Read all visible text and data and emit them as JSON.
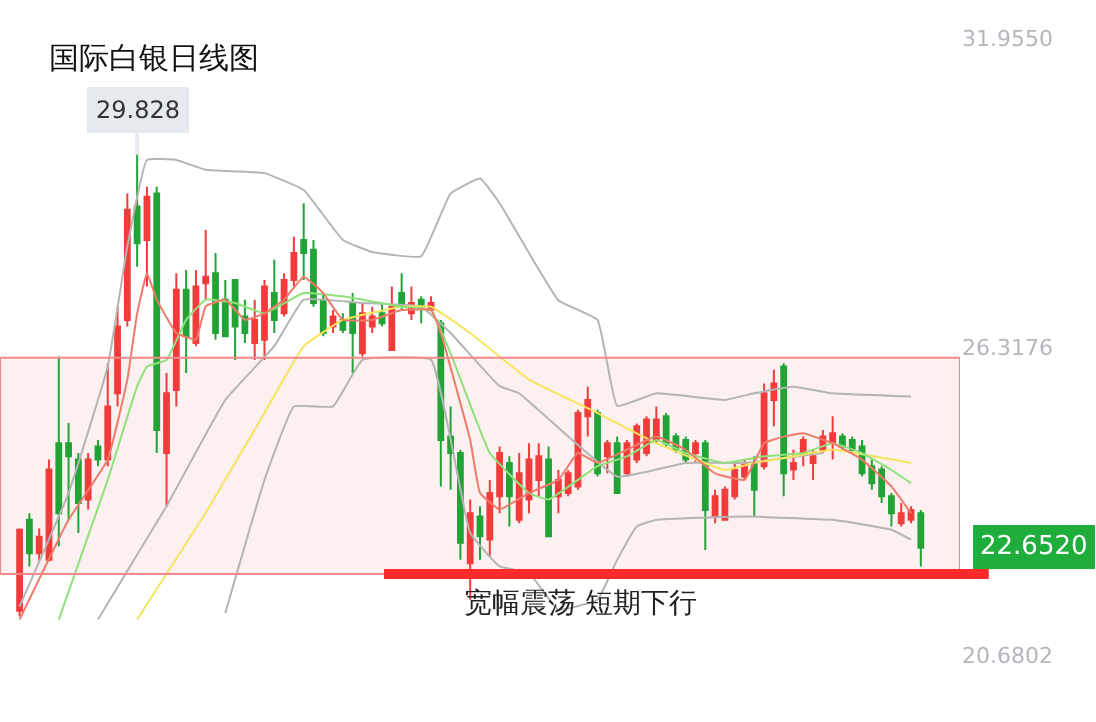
{
  "chart_data": {
    "type": "candlestick",
    "title": "国际白银日线图",
    "categories": [
      null,
      null,
      null,
      null,
      null,
      null,
      null,
      null,
      null,
      null,
      null,
      null,
      null,
      null,
      null,
      null,
      null,
      null,
      null,
      null,
      null,
      null,
      null,
      null,
      null,
      null,
      null,
      null,
      null,
      null,
      null,
      null,
      null,
      null,
      null,
      null,
      null,
      null,
      null,
      null,
      null,
      null,
      null,
      null,
      null,
      null,
      null,
      null,
      null,
      null,
      null,
      null,
      null,
      null,
      null,
      null,
      null,
      null,
      null,
      null,
      null,
      null,
      null,
      null,
      null,
      null,
      null,
      null,
      null,
      null,
      null,
      null,
      null,
      null,
      null,
      null,
      null,
      null,
      null,
      null,
      null,
      null,
      null,
      null,
      null,
      null,
      null,
      null,
      null,
      null,
      null,
      null,
      null
    ],
    "ohlc": [
      [
        21.5,
        23.0,
        21.4,
        22.98
      ],
      [
        23.16,
        23.28,
        22.31,
        22.55
      ],
      [
        22.55,
        23.0,
        22.4,
        22.85
      ],
      [
        22.43,
        24.26,
        22.4,
        24.08
      ],
      [
        24.56,
        26.14,
        22.68,
        23.28
      ],
      [
        24.56,
        24.93,
        23.16,
        24.32
      ],
      [
        24.26,
        24.38,
        22.92,
        23.47
      ],
      [
        23.53,
        24.38,
        23.35,
        24.26
      ],
      [
        24.5,
        24.62,
        24.14,
        24.26
      ],
      [
        24.26,
        26.02,
        24.14,
        25.23
      ],
      [
        25.47,
        27.05,
        25.23,
        26.69
      ],
      [
        26.81,
        29.12,
        26.69,
        28.82
      ],
      [
        28.88,
        29.828,
        27.78,
        28.21
      ],
      [
        28.27,
        29.24,
        27.42,
        29.06
      ],
      [
        29.12,
        29.24,
        24.38,
        24.8
      ],
      [
        24.38,
        25.84,
        23.41,
        25.47
      ],
      [
        25.53,
        27.66,
        25.23,
        27.36
      ],
      [
        27.36,
        27.72,
        25.84,
        26.51
      ],
      [
        26.39,
        27.72,
        26.33,
        27.42
      ],
      [
        27.48,
        28.45,
        27.18,
        27.6
      ],
      [
        27.66,
        28.03,
        26.45,
        26.57
      ],
      [
        27.18,
        27.54,
        26.51,
        26.51
      ],
      [
        27.54,
        27.54,
        26.08,
        26.69
      ],
      [
        26.87,
        27.18,
        26.39,
        26.57
      ],
      [
        26.39,
        27.18,
        26.08,
        26.81
      ],
      [
        26.45,
        27.54,
        26.08,
        27.42
      ],
      [
        27.3,
        27.91,
        26.57,
        26.81
      ],
      [
        26.93,
        27.66,
        26.87,
        27.54
      ],
      [
        27.54,
        28.33,
        27.42,
        28.03
      ],
      [
        28.27,
        28.94,
        27.54,
        28.03
      ],
      [
        28.09,
        28.27,
        27.05,
        27.12
      ],
      [
        27.18,
        27.3,
        26.51,
        26.57
      ],
      [
        26.69,
        26.99,
        26.57,
        26.87
      ],
      [
        26.81,
        26.93,
        26.57,
        26.63
      ],
      [
        27.12,
        27.3,
        25.84,
        26.57
      ],
      [
        26.2,
        27.12,
        26.14,
        26.93
      ],
      [
        26.69,
        27.05,
        26.57,
        26.87
      ],
      [
        26.93,
        27.12,
        26.69,
        26.75
      ],
      [
        26.26,
        27.42,
        26.26,
        27.05
      ],
      [
        27.3,
        27.66,
        26.99,
        27.05
      ],
      [
        26.93,
        27.42,
        26.81,
        27.12
      ],
      [
        27.18,
        27.24,
        26.75,
        27.05
      ],
      [
        27.0,
        27.24,
        26.99,
        27.12
      ],
      [
        26.75,
        26.81,
        23.77,
        24.62
      ],
      [
        24.68,
        25.23,
        23.71,
        24.38
      ],
      [
        24.38,
        24.44,
        22.43,
        22.74
      ],
      [
        22.37,
        23.53,
        21.7,
        23.28
      ],
      [
        23.22,
        23.41,
        22.43,
        22.86
      ],
      [
        22.8,
        23.89,
        22.49,
        23.65
      ],
      [
        23.59,
        24.5,
        23.28,
        24.38
      ],
      [
        24.2,
        24.32,
        23.04,
        23.59
      ],
      [
        23.16,
        24.38,
        23.1,
        24.01
      ],
      [
        23.53,
        24.56,
        23.28,
        24.26
      ],
      [
        23.89,
        24.56,
        23.59,
        24.32
      ],
      [
        24.26,
        24.5,
        22.86,
        22.86
      ],
      [
        23.59,
        24.07,
        23.28,
        23.89
      ],
      [
        23.65,
        24.07,
        23.59,
        24.01
      ],
      [
        23.77,
        25.17,
        23.71,
        25.11
      ],
      [
        25.05,
        25.59,
        24.68,
        25.35
      ],
      [
        25.11,
        25.17,
        23.95,
        24.01
      ],
      [
        24.32,
        24.62,
        24.01,
        24.56
      ],
      [
        24.56,
        24.68,
        23.65,
        23.65
      ],
      [
        24.01,
        24.62,
        23.95,
        24.56
      ],
      [
        24.26,
        24.92,
        24.2,
        24.87
      ],
      [
        24.38,
        25.05,
        24.32,
        24.99
      ],
      [
        24.62,
        25.23,
        24.56,
        24.99
      ],
      [
        25.05,
        25.11,
        24.5,
        24.56
      ],
      [
        24.68,
        24.74,
        24.38,
        24.44
      ],
      [
        24.62,
        24.68,
        24.2,
        24.26
      ],
      [
        24.38,
        24.62,
        24.2,
        24.56
      ],
      [
        24.56,
        24.62,
        22.61,
        23.34
      ],
      [
        23.22,
        23.71,
        23.1,
        23.59
      ],
      [
        23.16,
        23.77,
        23.16,
        23.71
      ],
      [
        23.59,
        24.2,
        23.53,
        24.07
      ],
      [
        23.95,
        24.26,
        23.89,
        24.2
      ],
      [
        24.2,
        24.32,
        23.22,
        23.71
      ],
      [
        24.14,
        25.65,
        24.08,
        25.47
      ],
      [
        25.35,
        25.9,
        24.87,
        25.65
      ],
      [
        25.96,
        26.02,
        23.59,
        24.01
      ],
      [
        24.08,
        24.44,
        23.89,
        24.2
      ],
      [
        24.38,
        24.68,
        24.14,
        24.62
      ],
      [
        24.2,
        24.44,
        23.89,
        24.32
      ],
      [
        24.44,
        24.8,
        24.38,
        24.68
      ],
      [
        24.56,
        25.05,
        24.26,
        24.74
      ],
      [
        24.68,
        24.74,
        24.44,
        24.5
      ],
      [
        24.62,
        24.68,
        24.38,
        24.44
      ],
      [
        24.5,
        24.62,
        23.95,
        24.01
      ],
      [
        24.14,
        24.26,
        23.71,
        23.83
      ],
      [
        24.08,
        24.14,
        23.47,
        23.59
      ],
      [
        23.59,
        23.65,
        23.04,
        23.28
      ],
      [
        23.1,
        23.47,
        23.04,
        23.28
      ],
      [
        23.16,
        23.41,
        23.1,
        23.34
      ],
      [
        23.28,
        23.34,
        22.31,
        22.652
      ]
    ],
    "colors": [
      "#f23b3b",
      "#21a336",
      "#f23b3b",
      "#f23b3b",
      "#21a336",
      "#21a336",
      "#21a336",
      "#f23b3b",
      "#21a336",
      "#f23b3b",
      "#f23b3b",
      "#f23b3b",
      "#21a336",
      "#f23b3b",
      "#21a336",
      "#f23b3b",
      "#f23b3b",
      "#21a336",
      "#f23b3b",
      "#f23b3b",
      "#21a336",
      "#21a336",
      "#21a336",
      "#21a336",
      "#f23b3b",
      "#f23b3b",
      "#21a336",
      "#f23b3b",
      "#f23b3b",
      "#21a336",
      "#21a336",
      "#21a336",
      "#f23b3b",
      "#21a336",
      "#21a336",
      "#f23b3b",
      "#f23b3b",
      "#21a336",
      "#f23b3b",
      "#21a336",
      "#f23b3b",
      "#21a336",
      "#f23b3b",
      "#21a336",
      "#21a336",
      "#21a336",
      "#f23b3b",
      "#21a336",
      "#f23b3b",
      "#f23b3b",
      "#21a336",
      "#f23b3b",
      "#f23b3b",
      "#f23b3b",
      "#21a336",
      "#f23b3b",
      "#f23b3b",
      "#f23b3b",
      "#f23b3b",
      "#21a336",
      "#f23b3b",
      "#21a336",
      "#f23b3b",
      "#f23b3b",
      "#f23b3b",
      "#f23b3b",
      "#21a336",
      "#21a336",
      "#21a336",
      "#f23b3b",
      "#21a336",
      "#f23b3b",
      "#f23b3b",
      "#f23b3b",
      "#f23b3b",
      "#21a336",
      "#f23b3b",
      "#f23b3b",
      "#21a336",
      "#f23b3b",
      "#f23b3b",
      "#f23b3b",
      "#f23b3b",
      "#f23b3b",
      "#21a336",
      "#21a336",
      "#21a336",
      "#21a336",
      "#21a336",
      "#21a336",
      "#f23b3b",
      "#f23b3b",
      "#21a336"
    ],
    "series": [
      {
        "type": "line",
        "color": "#b4b4b4",
        "values": [
          21.58,
          null,
          null,
          null,
          null,
          23.65,
          null,
          null,
          null,
          25.96,
          null,
          28.15,
          null,
          29.73,
          null,
          null,
          29.73,
          null,
          null,
          29.55,
          null,
          null,
          null,
          null,
          null,
          29.49,
          null,
          null,
          null,
          29.18,
          null,
          null,
          null,
          28.27,
          null,
          null,
          28.05,
          null,
          null,
          null,
          null,
          27.97,
          null,
          null,
          29.12,
          null,
          null,
          29.39,
          null,
          28.94,
          null,
          null,
          null,
          null,
          null,
          27.17,
          null,
          null,
          null,
          26.81,
          null,
          25.24,
          null,
          null,
          null,
          25.47,
          null,
          null,
          null,
          null,
          null,
          null,
          25.35,
          null,
          null,
          25.47,
          null,
          null,
          null,
          25.59,
          null,
          null,
          null,
          25.47,
          null,
          null,
          null,
          null,
          null,
          null,
          null,
          25.41,
          null
        ]
      },
      {
        "type": "line",
        "color": "#b4b4b4",
        "values": [
          null,
          null,
          null,
          null,
          null,
          null,
          null,
          null,
          21.34,
          null,
          null,
          null,
          null,
          null,
          null,
          23.41,
          null,
          null,
          null,
          null,
          null,
          25.35,
          null,
          null,
          null,
          null,
          26.33,
          null,
          null,
          27.18,
          null,
          null,
          null,
          null,
          null,
          27.12,
          null,
          null,
          null,
          null,
          null,
          27.05,
          null,
          null,
          26.57,
          null,
          null,
          null,
          null,
          25.6,
          null,
          25.47,
          null,
          null,
          null,
          null,
          null,
          null,
          null,
          null,
          null,
          23.95,
          null,
          null,
          null,
          null,
          null,
          null,
          24.2,
          null,
          null,
          null,
          null,
          null,
          24.2,
          null,
          null,
          null,
          null,
          null,
          null,
          null,
          24.38,
          null,
          null,
          null,
          null,
          null,
          null,
          null,
          null,
          null,
          null
        ]
      },
      {
        "type": "line",
        "color": "#b4b4b4",
        "values": [
          null,
          null,
          null,
          null,
          null,
          null,
          null,
          null,
          null,
          null,
          null,
          null,
          null,
          null,
          null,
          null,
          null,
          null,
          null,
          null,
          null,
          21.46,
          null,
          null,
          null,
          23.89,
          null,
          null,
          25.23,
          null,
          null,
          null,
          25.23,
          null,
          null,
          26.08,
          null,
          null,
          null,
          null,
          null,
          null,
          26.08,
          null,
          null,
          null,
          22.92,
          null,
          null,
          22.31,
          null,
          null,
          22.19,
          null,
          null,
          21.52,
          null,
          null,
          null,
          21.7,
          null,
          22.43,
          null,
          23.04,
          null,
          23.16,
          null,
          null,
          null,
          null,
          null,
          null,
          null,
          null,
          23.22,
          null,
          null,
          null,
          null,
          null,
          null,
          null,
          null,
          23.16,
          null,
          null,
          null,
          null,
          null,
          22.98,
          null,
          22.8,
          null
        ]
      },
      {
        "type": "line",
        "color": "#f7e45c",
        "values": [
          null,
          null,
          null,
          null,
          null,
          null,
          null,
          null,
          null,
          null,
          null,
          null,
          21.34,
          null,
          null,
          null,
          null,
          null,
          null,
          23.29,
          null,
          null,
          null,
          null,
          null,
          25.11,
          null,
          null,
          null,
          26.33,
          null,
          null,
          null,
          26.81,
          null,
          null,
          null,
          null,
          null,
          27.05,
          null,
          null,
          27.05,
          null,
          null,
          null,
          26.57,
          null,
          null,
          null,
          null,
          null,
          25.72,
          null,
          null,
          null,
          null,
          null,
          null,
          25.11,
          null,
          null,
          null,
          null,
          null,
          24.56,
          null,
          null,
          null,
          null,
          null,
          null,
          24.07,
          null,
          null,
          24.2,
          null,
          null,
          null,
          24.32,
          null,
          null,
          null,
          24.44,
          null,
          null,
          null,
          null,
          null,
          null,
          null,
          24.2,
          null
        ]
      },
      {
        "type": "line",
        "color": "#8fe07a",
        "values": [
          null,
          null,
          null,
          null,
          21.34,
          null,
          null,
          null,
          null,
          23.89,
          null,
          null,
          25.6,
          25.96,
          null,
          26.08,
          null,
          26.81,
          null,
          27.18,
          null,
          null,
          27.12,
          null,
          null,
          26.93,
          null,
          null,
          null,
          27.3,
          null,
          null,
          null,
          27.24,
          null,
          null,
          null,
          null,
          null,
          27.05,
          null,
          null,
          26.99,
          null,
          26.2,
          null,
          null,
          null,
          24.38,
          null,
          null,
          null,
          23.65,
          null,
          23.53,
          null,
          null,
          23.89,
          null,
          24.14,
          null,
          null,
          24.32,
          null,
          null,
          24.62,
          null,
          null,
          24.38,
          null,
          null,
          null,
          24.2,
          null,
          null,
          null,
          24.32,
          null,
          null,
          null,
          24.38,
          null,
          null,
          24.56,
          null,
          null,
          24.38,
          null,
          null,
          24.07,
          null,
          23.83,
          null
        ]
      },
      {
        "type": "line",
        "color": "#f07a6a",
        "values": [
          21.34,
          null,
          null,
          null,
          null,
          23.16,
          null,
          null,
          null,
          24.26,
          null,
          25.72,
          26.93,
          27.66,
          27.18,
          null,
          26.57,
          null,
          26.45,
          27.06,
          null,
          27.18,
          null,
          26.81,
          null,
          26.93,
          null,
          27.18,
          null,
          27.6,
          null,
          27.3,
          null,
          26.81,
          null,
          null,
          26.81,
          null,
          null,
          26.99,
          null,
          null,
          26.99,
          26.57,
          null,
          null,
          24.62,
          23.65,
          null,
          23.35,
          null,
          null,
          23.65,
          null,
          null,
          23.89,
          null,
          24.38,
          null,
          24.2,
          null,
          null,
          24.44,
          null,
          null,
          24.68,
          null,
          null,
          24.44,
          null,
          null,
          24.01,
          null,
          null,
          23.89,
          null,
          24.56,
          null,
          24.68,
          null,
          24.74,
          null,
          null,
          24.56,
          null,
          null,
          24.26,
          null,
          null,
          23.77,
          null,
          23.28,
          null
        ]
      }
    ],
    "ylim": [
      19.47,
      32.65
    ],
    "yticks": [
      {
        "value": 31.955,
        "label": "31.9550"
      },
      {
        "value": 26.3176,
        "label": "26.3176"
      },
      {
        "value": 20.6802,
        "label": "20.6802"
      }
    ],
    "tick_labels": "y",
    "ref_lines": [
      {
        "axis": "y",
        "value": 22.17,
        "color": "#ff2a2a"
      }
    ],
    "bands": [
      {
        "axis": "y",
        "from": 22.17,
        "to": 26.12,
        "color": "#f08a8a"
      }
    ],
    "annotations": [
      {
        "text": "29.828",
        "y": 29.828
      },
      "22.6520",
      "宽幅震荡 短期下行"
    ]
  }
}
